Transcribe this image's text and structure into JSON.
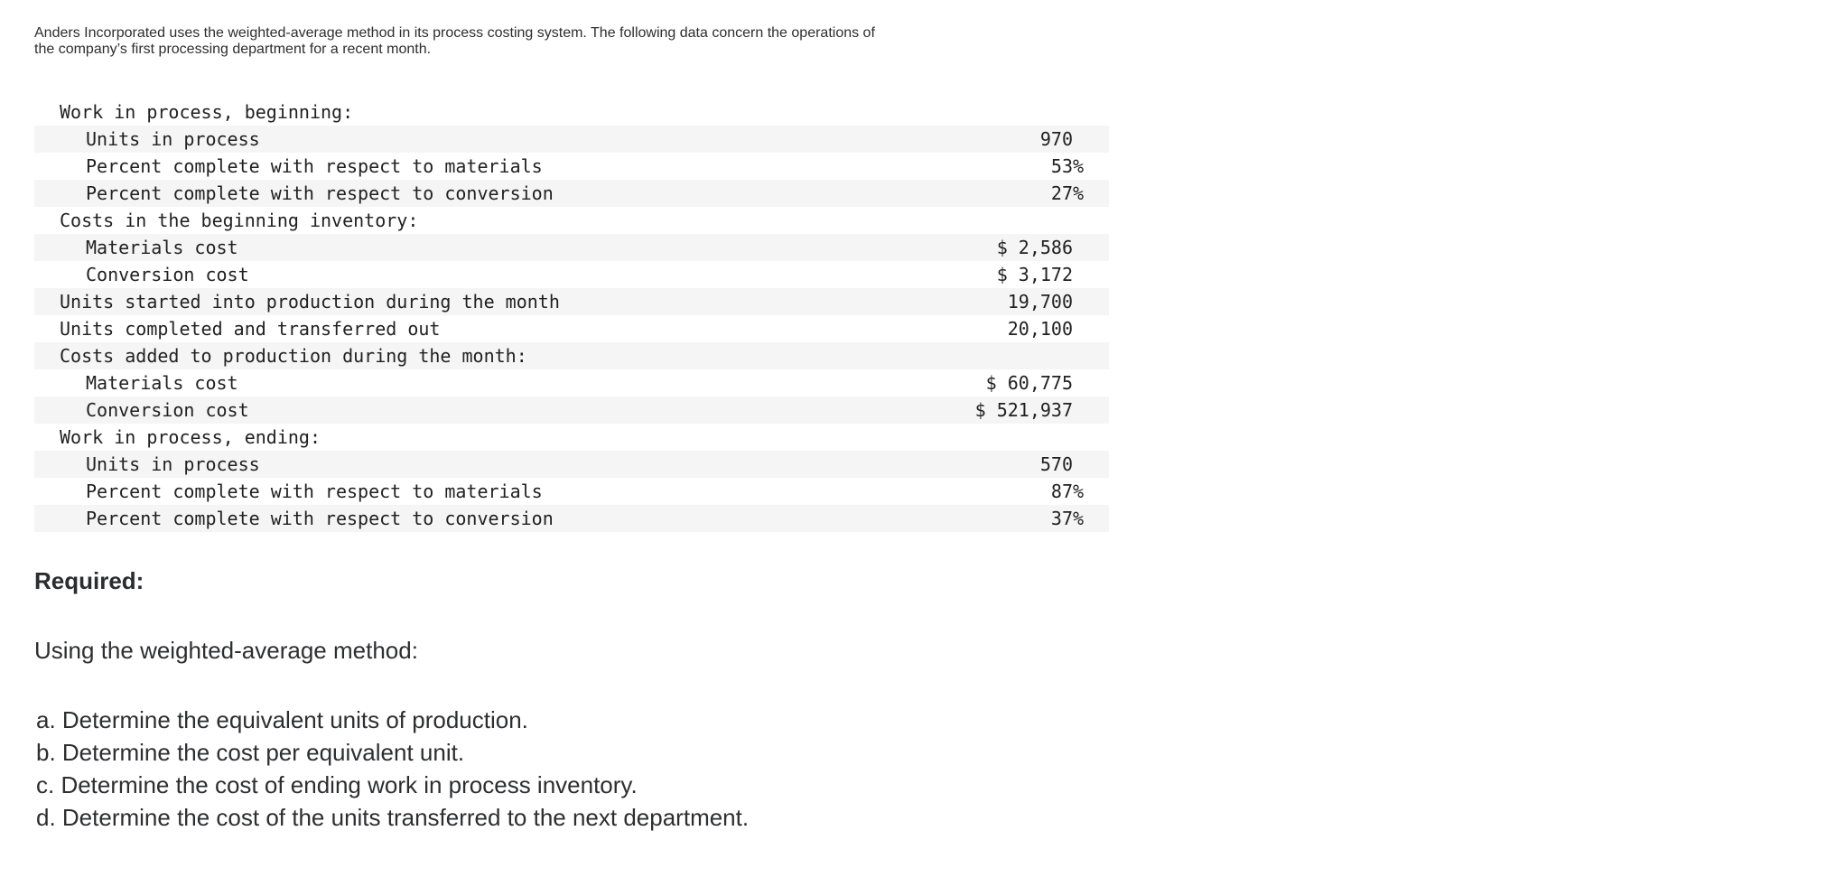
{
  "intro": {
    "line1": "Anders Incorporated uses the weighted-average method in its process costing system. The following data concern the operations of",
    "line2": "the company’s first processing department for a recent month."
  },
  "table": {
    "rows": [
      {
        "label": "Work in process, beginning:",
        "value": "",
        "suffix": "",
        "indent": 1,
        "shaded": false
      },
      {
        "label": "Units in process",
        "value": "970",
        "suffix": "",
        "indent": 2,
        "shaded": true
      },
      {
        "label": "Percent complete with respect to materials",
        "value": "53",
        "suffix": "%",
        "indent": 2,
        "shaded": false
      },
      {
        "label": "Percent complete with respect to conversion",
        "value": "27",
        "suffix": "%",
        "indent": 2,
        "shaded": true
      },
      {
        "label": "Costs in the beginning inventory:",
        "value": "",
        "suffix": "",
        "indent": 1,
        "shaded": false
      },
      {
        "label": "Materials cost",
        "value": "$ 2,586",
        "suffix": "",
        "indent": 2,
        "shaded": true
      },
      {
        "label": "Conversion cost",
        "value": "$ 3,172",
        "suffix": "",
        "indent": 2,
        "shaded": false
      },
      {
        "label": "Units started into production during the month",
        "value": "19,700",
        "suffix": "",
        "indent": 1,
        "shaded": true
      },
      {
        "label": "Units completed and transferred out",
        "value": "20,100",
        "suffix": "",
        "indent": 1,
        "shaded": false
      },
      {
        "label": "Costs added to production during the month:",
        "value": "",
        "suffix": "",
        "indent": 1,
        "shaded": true
      },
      {
        "label": "Materials cost",
        "value": "$ 60,775",
        "suffix": "",
        "indent": 2,
        "shaded": false
      },
      {
        "label": "Conversion cost",
        "value": "$ 521,937",
        "suffix": "",
        "indent": 2,
        "shaded": true
      },
      {
        "label": "Work in process, ending:",
        "value": "",
        "suffix": "",
        "indent": 1,
        "shaded": false
      },
      {
        "label": "Units in process",
        "value": "570",
        "suffix": "",
        "indent": 2,
        "shaded": true
      },
      {
        "label": "Percent complete with respect to materials",
        "value": "87",
        "suffix": "%",
        "indent": 2,
        "shaded": false
      },
      {
        "label": "Percent complete with respect to conversion",
        "value": "37",
        "suffix": "%",
        "indent": 2,
        "shaded": true
      }
    ]
  },
  "required": {
    "heading": "Required:",
    "intro": "Using the weighted-average method:",
    "items": [
      "a. Determine the equivalent units of production.",
      "b. Determine the cost per equivalent unit.",
      "c. Determine the cost of ending work in process inventory.",
      "d. Determine the cost of the units transferred to the next department."
    ]
  },
  "colors": {
    "page_bg": "#ffffff",
    "row_shade": "#f5f5f5",
    "text": "#2d2e30",
    "table_text": "#212121"
  }
}
